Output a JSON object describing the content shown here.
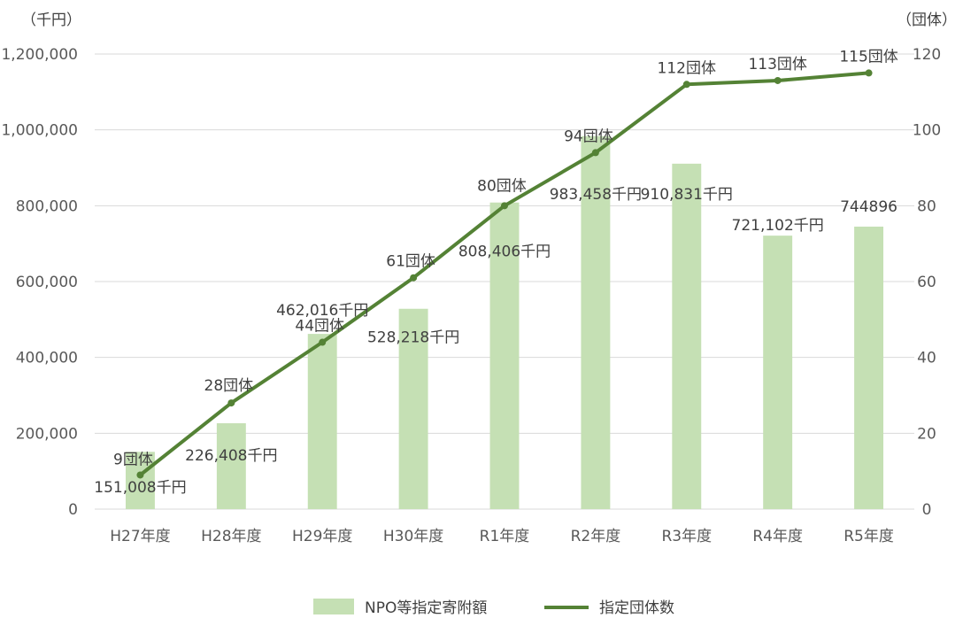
{
  "chart_data": {
    "type": "bar",
    "categories": [
      "H27年度",
      "H28年度",
      "H29年度",
      "H30年度",
      "R1年度",
      "R2年度",
      "R3年度",
      "R4年度",
      "R5年度"
    ],
    "y_left_unit": "（千円）",
    "y_right_unit": "（団体）",
    "ylim_left": [
      0,
      1200000
    ],
    "ylim_right": [
      0,
      120
    ],
    "y_left_ticks": [
      "0",
      "200,000",
      "400,000",
      "600,000",
      "800,000",
      "1,000,000",
      "1,200,000"
    ],
    "y_right_ticks": [
      "0",
      "20",
      "40",
      "60",
      "80",
      "100",
      "120"
    ],
    "grid": true,
    "legend_position": "bottom",
    "series": [
      {
        "name": "NPO等指定寄附額",
        "type": "bar",
        "axis": "left",
        "color": "#c5e0b4",
        "values": [
          151008,
          226408,
          462016,
          528218,
          808406,
          983458,
          910831,
          721102,
          744896
        ],
        "labels": [
          "151,008千円",
          "226,408千円",
          "462,016千円",
          "528,218千円",
          "808,406千円",
          "983,458千円",
          "910,831千円",
          "721,102千円",
          "744896"
        ]
      },
      {
        "name": "指定団体数",
        "type": "line",
        "axis": "right",
        "color": "#548235",
        "values": [
          9,
          28,
          44,
          61,
          80,
          94,
          112,
          113,
          115
        ],
        "labels": [
          "9団体",
          "28団体",
          "44団体",
          "61団体",
          "80団体",
          "94団体",
          "112団体",
          "113団体",
          "115団体"
        ]
      }
    ]
  }
}
